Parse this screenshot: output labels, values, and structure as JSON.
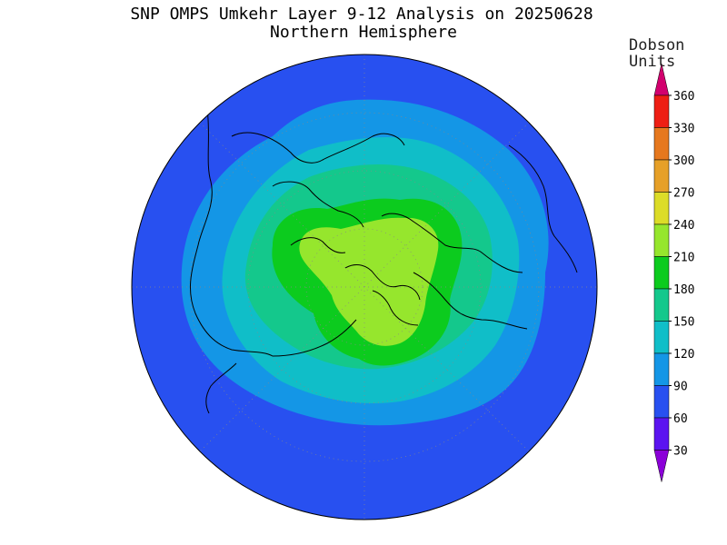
{
  "title": "SNP OMPS Umkehr Layer 9-12 Analysis on 20250628",
  "subtitle": "Northern Hemisphere",
  "colorbar": {
    "units_line1": "Dobson",
    "units_line2": "Units",
    "ticks": [
      "30",
      "60",
      "90",
      "120",
      "150",
      "180",
      "210",
      "240",
      "270",
      "300",
      "330",
      "360"
    ],
    "colors": [
      "#8b00d8",
      "#5b14f0",
      "#2850f0",
      "#1496e6",
      "#10bec8",
      "#14c88c",
      "#0ccb1e",
      "#96e62d",
      "#dcdc28",
      "#e6a028",
      "#e6781e",
      "#ee1e14",
      "#d2006e"
    ]
  },
  "map": {
    "projection": "polar-stereographic",
    "levels_dobson": [
      {
        "min": 60,
        "max": 90,
        "color": "#2850f0"
      },
      {
        "min": 90,
        "max": 120,
        "color": "#1496e6"
      },
      {
        "min": 120,
        "max": 150,
        "color": "#10bec8"
      },
      {
        "min": 150,
        "max": 180,
        "color": "#14c88c"
      },
      {
        "min": 180,
        "max": 210,
        "color": "#0ccb1e"
      },
      {
        "min": 210,
        "max": 240,
        "color": "#96e62d"
      }
    ]
  }
}
